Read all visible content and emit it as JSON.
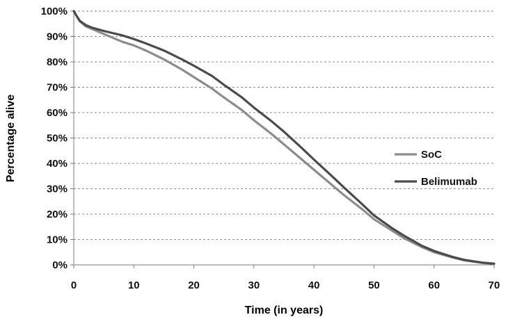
{
  "chart_data": {
    "type": "line",
    "title": "",
    "xlabel": "Time (in years)",
    "ylabel": "Percentage alive",
    "xlim": [
      0,
      70
    ],
    "ylim": [
      0,
      100
    ],
    "x_ticks": [
      0,
      10,
      20,
      30,
      40,
      50,
      60,
      70
    ],
    "y_ticks": [
      "0%",
      "10%",
      "20%",
      "30%",
      "40%",
      "50%",
      "60%",
      "70%",
      "80%",
      "90%",
      "100%"
    ],
    "grid": "horizontal dashed",
    "legend_position": "right",
    "series": [
      {
        "name": "SoC",
        "color": "#8c8c8c",
        "x": [
          0,
          0.5,
          1,
          2,
          3,
          5,
          8,
          10,
          12,
          15,
          18,
          20,
          23,
          25,
          28,
          30,
          33,
          35,
          38,
          40,
          43,
          45,
          48,
          50,
          53,
          55,
          58,
          60,
          63,
          65,
          68,
          70
        ],
        "y": [
          100,
          98,
          96,
          94,
          93,
          91,
          88,
          86.5,
          84.5,
          81,
          77,
          74,
          69.5,
          66,
          61,
          57,
          51.5,
          47.5,
          41.5,
          37.5,
          31.5,
          27.5,
          22,
          18,
          13.5,
          10.5,
          7,
          5,
          3,
          1.8,
          0.8,
          0.5
        ]
      },
      {
        "name": "Belimumab",
        "color": "#4a4a4a",
        "x": [
          0,
          0.5,
          1,
          2,
          3,
          5,
          8,
          10,
          12,
          15,
          18,
          20,
          23,
          25,
          28,
          30,
          33,
          35,
          38,
          40,
          43,
          45,
          48,
          50,
          53,
          55,
          58,
          60,
          63,
          65,
          68,
          70
        ],
        "y": [
          100,
          98,
          96.2,
          94.5,
          93.5,
          92.2,
          90.5,
          89,
          87.3,
          84.5,
          81,
          78.5,
          74.5,
          71,
          66,
          62,
          56.5,
          52.5,
          46,
          41.5,
          35,
          30.5,
          24,
          19.5,
          14.5,
          11.5,
          7.5,
          5.5,
          3.2,
          2,
          0.9,
          0.5
        ]
      }
    ]
  }
}
